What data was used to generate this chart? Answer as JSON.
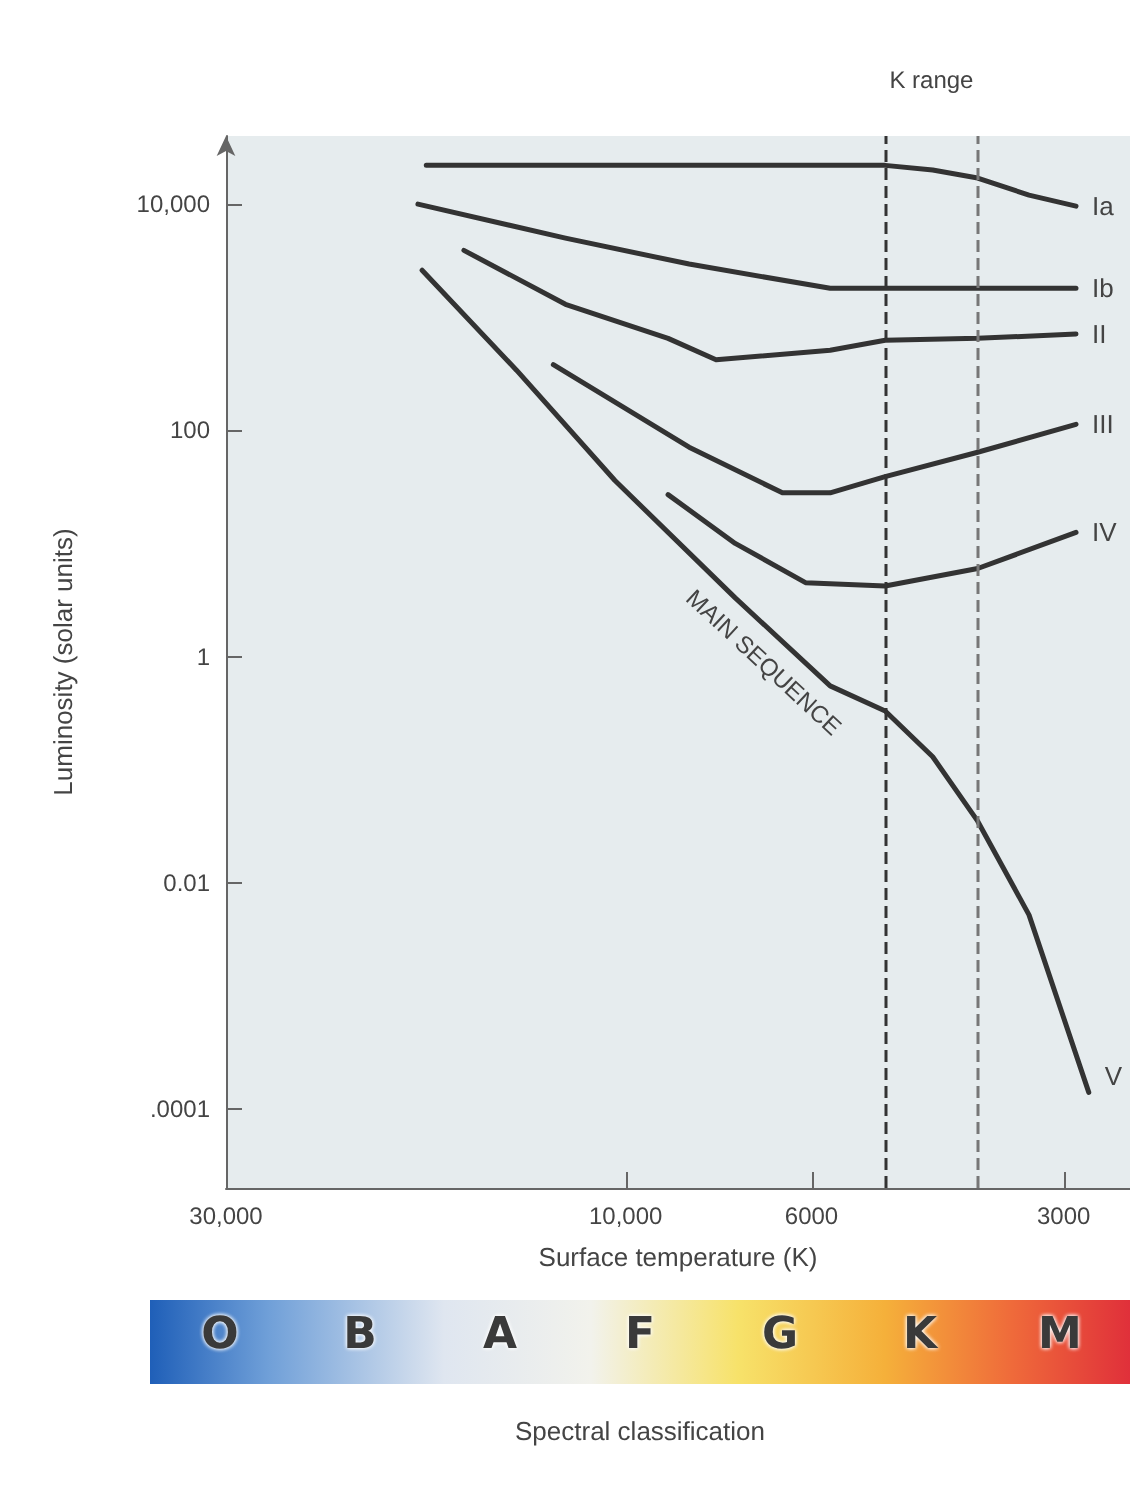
{
  "chart_data": {
    "type": "line",
    "xlabel": "Surface temperature (K)",
    "ylabel": "Luminosity (solar units)",
    "log": "xy",
    "xlim": [
      30000,
      2500
    ],
    "xticks": [
      {
        "value": 30000,
        "label": "30,000"
      },
      {
        "value": 10000,
        "label": "10,000"
      },
      6000,
      3000
    ],
    "ylim": [
      2e-05,
      40000
    ],
    "yticks": [
      {
        "value": 0.0001,
        "label": ".0001"
      },
      0.01,
      1,
      100,
      {
        "value": 10000,
        "label": "10,000"
      }
    ],
    "grid": false,
    "legend": false,
    "marker": "none",
    "line_style": "solid",
    "series": [
      {
        "name": "Ia",
        "color": "#333333",
        "x": [
          17300,
          10000,
          6000,
          4900,
          4300,
          3800,
          3300,
          2900
        ],
        "values": [
          22000,
          22000,
          22000,
          22000,
          20000,
          17000,
          12000,
          9600
        ]
      },
      {
        "name": "Ib",
        "color": "#333333",
        "x": [
          17700,
          11800,
          8400,
          5700,
          2900
        ],
        "values": [
          10000,
          5000,
          2950,
          1800,
          1800
        ]
      },
      {
        "name": "II",
        "color": "#333333",
        "x": [
          15600,
          11800,
          8900,
          7800,
          5700,
          4900,
          3800,
          2900
        ],
        "values": [
          3900,
          1300,
          650,
          420,
          510,
          625,
          650,
          710
        ]
      },
      {
        "name": "III",
        "color": "#333333",
        "x": [
          12200,
          8400,
          6500,
          5700,
          4900,
          3800,
          2900
        ],
        "values": [
          380,
          71,
          28,
          28,
          39,
          64,
          113
        ]
      },
      {
        "name": "IV",
        "color": "#333333",
        "x": [
          8900,
          7400,
          6100,
          4900,
          3800,
          2900
        ],
        "values": [
          27,
          10,
          4.5,
          4.2,
          6,
          12.5
        ]
      },
      {
        "name": "V",
        "color": "#333333",
        "x": [
          17500,
          13500,
          10300,
          7400,
          5700,
          4900,
          4300,
          3800,
          3300,
          2800
        ],
        "values": [
          2600,
          340,
          36,
          3.3,
          0.55,
          0.33,
          0.13,
          0.035,
          0.0052,
          0.00014
        ]
      }
    ],
    "ref_lines": [
      {
        "axis": "x",
        "value": 4900,
        "color": "#333333",
        "line_style": "dashed"
      },
      {
        "axis": "x",
        "value": 3800,
        "color": "#777777",
        "line_style": "dashed"
      }
    ],
    "annotations": [
      "K range",
      "MAIN SEQUENCE",
      "O",
      "B",
      "A",
      "F",
      "G",
      "K",
      "M",
      "Spectral classification"
    ]
  }
}
